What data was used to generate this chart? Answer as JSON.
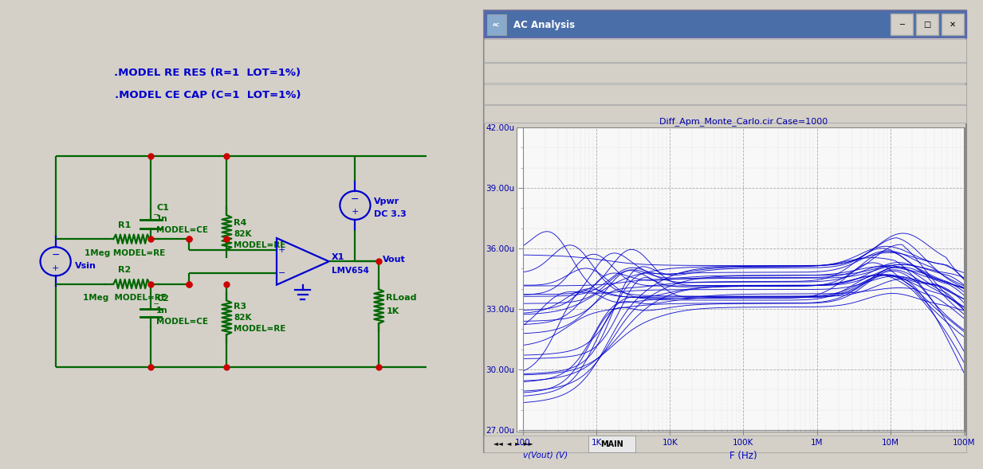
{
  "title": "Diff_Apm_Monte_Carlo.cir Case=1000",
  "xlabel": "F (Hz)",
  "ylabel": "v(Vout) (V)",
  "ylim": [
    2.7e-05,
    4.2e-05
  ],
  "ytick_labels": [
    "27.00u",
    "30.00u",
    "33.00u",
    "36.00u",
    "39.00u",
    "42.00u"
  ],
  "ytick_vals": [
    2.7e-05,
    3e-05,
    3.3e-05,
    3.6e-05,
    3.9e-05,
    4.2e-05
  ],
  "xlim": [
    100,
    100000000.0
  ],
  "xtick_labels": [
    "100",
    "1K",
    "10K",
    "100K",
    "1M",
    "10M",
    "100M"
  ],
  "xtick_vals": [
    100,
    1000,
    10000,
    100000,
    1000000,
    10000000,
    100000000
  ],
  "curve_color": "#0000cc",
  "title_color": "#0000aa",
  "label_color": "#0000cc",
  "tick_color": "#0000aa",
  "model_text1": ".MODEL RE RES (R=1  LOT=1%)",
  "model_text2": ".MODEL CE CAP (C=1  LOT=1%)",
  "gc": "#006600",
  "bc": "#0000cc",
  "rc": "#cc0000"
}
